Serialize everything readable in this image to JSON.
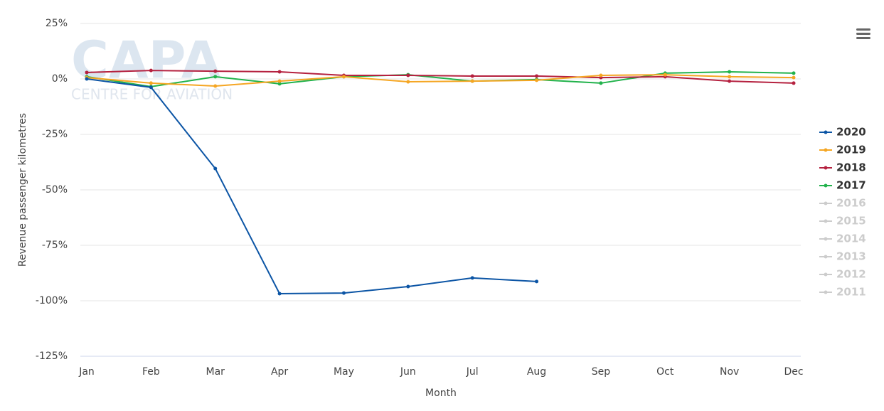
{
  "chart_data": {
    "type": "line",
    "watermark": {
      "title": "CAPA",
      "subtitle": "CENTRE FOR AVIATION"
    },
    "x_label": "Month",
    "y_label": "Revenue passenger kilometres",
    "categories": [
      "Jan",
      "Feb",
      "Mar",
      "Apr",
      "May",
      "Jun",
      "Jul",
      "Aug",
      "Sep",
      "Oct",
      "Nov",
      "Dec"
    ],
    "series": [
      {
        "name": "2020",
        "color": "#0c55a5",
        "values": [
          0,
          -3.8,
          -40.4,
          -96.8,
          -96.5,
          -93.6,
          -89.7,
          -91.3,
          null,
          null,
          null,
          null
        ]
      },
      {
        "name": "2019",
        "color": "#f5a623",
        "values": [
          0.6,
          -1.9,
          -3.2,
          -1,
          1,
          -1.3,
          -1,
          -0.6,
          1.6,
          1.9,
          1,
          0.6
        ]
      },
      {
        "name": "2018",
        "color": "#b5213f",
        "values": [
          2.9,
          3.8,
          3.5,
          3.2,
          1.6,
          1.6,
          1.3,
          1.3,
          0.6,
          1,
          -1,
          -1.9
        ]
      },
      {
        "name": "2017",
        "color": "#21b24b",
        "values": [
          1,
          -3.5,
          1,
          -2.2,
          1,
          1.9,
          -1,
          -0.3,
          -1.9,
          2.6,
          3.2,
          2.6
        ]
      }
    ],
    "hidden_series": [
      {
        "name": "2016"
      },
      {
        "name": "2015"
      },
      {
        "name": "2014"
      },
      {
        "name": "2013"
      },
      {
        "name": "2012"
      },
      {
        "name": "2011"
      }
    ],
    "hidden_color": "#cccccc",
    "ylim": [
      -125,
      25
    ],
    "yticks": [
      {
        "value": -125,
        "label": "-125%"
      },
      {
        "value": -100,
        "label": "-100%"
      },
      {
        "value": -75,
        "label": "-75%"
      },
      {
        "value": -50,
        "label": "-50%"
      },
      {
        "value": -25,
        "label": "-25%"
      },
      {
        "value": 0,
        "label": "0%"
      },
      {
        "value": 25,
        "label": "25%"
      }
    ],
    "grid": true,
    "legend": "right"
  }
}
